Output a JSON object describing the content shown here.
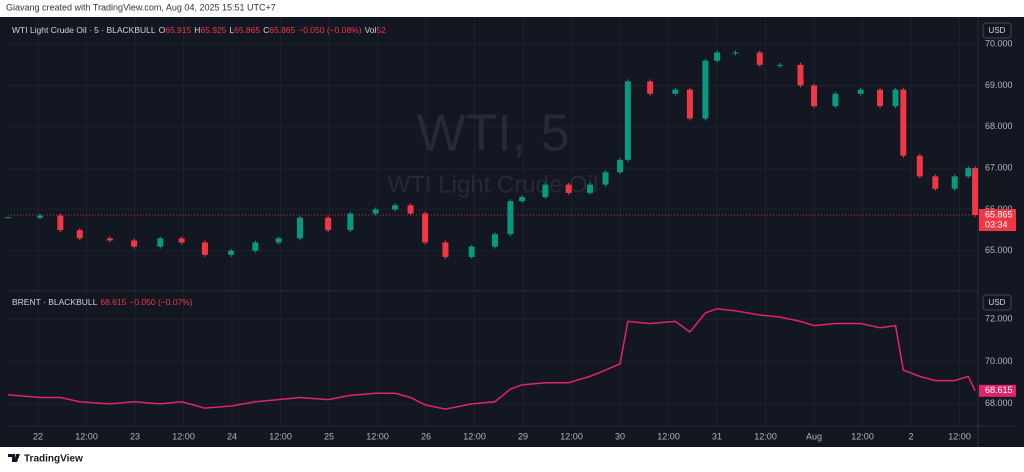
{
  "header": {
    "credit": "Giavang created with TradingView.com, Aug 04, 2025 15:51 UTC+7"
  },
  "footer": {
    "brand": "TradingView"
  },
  "chart_data": [
    {
      "type": "candlestick",
      "watermark": "WTI, 5",
      "watermark_sub": "WTI Light Crude Oil",
      "currency": "USD",
      "legend": {
        "name": "WTI Light Crude Oil · 5 · BLACKBULL",
        "fields": [
          {
            "key": "O",
            "value": "65.915"
          },
          {
            "key": "H",
            "value": "65.925"
          },
          {
            "key": "L",
            "value": "65.865"
          },
          {
            "key": "C",
            "value": "65.865"
          }
        ],
        "change": "−0.050 (−0.08%)",
        "vol_key": "Vol",
        "vol": "52"
      },
      "x": [
        -0.31,
        0.02,
        0.23,
        0.43,
        0.74,
        0.99,
        1.26,
        1.48,
        1.72,
        1.99,
        2.24,
        2.48,
        2.7,
        2.99,
        3.22,
        3.48,
        3.68,
        3.84,
        3.99,
        4.2,
        4.47,
        4.71,
        4.87,
        4.99,
        5.23,
        5.47,
        5.69,
        5.85,
        6.0,
        6.08,
        6.31,
        6.57,
        6.72,
        6.88,
        7.0,
        7.19,
        7.44,
        7.65,
        7.86,
        8.0,
        8.22,
        8.48,
        8.68,
        8.84,
        8.92,
        9.09,
        9.25,
        9.45,
        9.59,
        9.66
      ],
      "series": [
        {
          "name": "WTI",
          "up_color": "#089981",
          "down_color": "#f23645",
          "values": [
            65.8,
            65.85,
            65.5,
            65.3,
            65.25,
            65.1,
            65.3,
            65.2,
            64.9,
            65.0,
            65.2,
            65.3,
            65.8,
            65.5,
            65.9,
            66.0,
            66.1,
            65.9,
            65.2,
            64.85,
            65.1,
            65.4,
            66.2,
            66.3,
            66.6,
            66.4,
            66.6,
            66.9,
            67.2,
            69.1,
            68.8,
            68.9,
            68.2,
            69.6,
            69.8,
            69.8,
            69.5,
            69.5,
            69.0,
            68.5,
            68.8,
            68.9,
            68.5,
            68.9,
            67.3,
            66.8,
            66.5,
            66.8,
            67.0,
            65.865
          ]
        }
      ],
      "last_price": 65.865,
      "countdown": "03:34",
      "xlim": [
        -0.31,
        9.69
      ],
      "ylim": [
        64.05,
        70.585
      ],
      "yticks": [
        {
          "value": 65,
          "label": "65.000"
        },
        {
          "value": 66,
          "label": "66.000"
        },
        {
          "value": 67,
          "label": "67.000"
        },
        {
          "value": 68,
          "label": "68.000"
        },
        {
          "value": 69,
          "label": "69.000"
        },
        {
          "value": 70,
          "label": "70.000"
        }
      ],
      "grid": true
    },
    {
      "type": "line",
      "currency": "USD",
      "legend": {
        "name": "BRENT · BLACKBULL",
        "price": "68.615",
        "change": "−0.050 (−0.07%)"
      },
      "x": [
        -0.31,
        0.02,
        0.23,
        0.43,
        0.74,
        0.99,
        1.26,
        1.48,
        1.72,
        1.99,
        2.24,
        2.48,
        2.7,
        2.99,
        3.22,
        3.48,
        3.68,
        3.84,
        3.99,
        4.2,
        4.47,
        4.71,
        4.87,
        4.99,
        5.23,
        5.47,
        5.69,
        5.85,
        6.0,
        6.08,
        6.31,
        6.57,
        6.72,
        6.88,
        7.0,
        7.19,
        7.44,
        7.65,
        7.86,
        8.0,
        8.22,
        8.48,
        8.68,
        8.84,
        8.92,
        9.09,
        9.25,
        9.45,
        9.59,
        9.66
      ],
      "series": [
        {
          "name": "BRENT",
          "color": "#e0246b",
          "values": [
            68.43,
            68.3,
            68.3,
            68.1,
            68.0,
            68.1,
            68.0,
            68.1,
            67.8,
            67.9,
            68.1,
            68.2,
            68.3,
            68.2,
            68.4,
            68.5,
            68.5,
            68.3,
            67.95,
            67.75,
            68.0,
            68.1,
            68.7,
            68.9,
            69.0,
            69.0,
            69.3,
            69.6,
            69.9,
            71.9,
            71.8,
            71.9,
            71.4,
            72.3,
            72.5,
            72.4,
            72.2,
            72.1,
            71.9,
            71.7,
            71.8,
            71.8,
            71.6,
            71.7,
            69.6,
            69.3,
            69.1,
            69.1,
            69.3,
            68.615
          ]
        }
      ],
      "last_price": 68.615,
      "xlim": [
        -0.31,
        9.69
      ],
      "ylim": [
        67.0,
        73.29
      ],
      "yticks": [
        {
          "value": 68,
          "label": "68.000"
        },
        {
          "value": 70,
          "label": "70.000"
        },
        {
          "value": 72,
          "label": "72.000"
        }
      ],
      "xticks": [
        {
          "value": 0,
          "label": "22"
        },
        {
          "value": 0.5,
          "label": "12:00"
        },
        {
          "value": 1,
          "label": "23"
        },
        {
          "value": 1.5,
          "label": "12:00"
        },
        {
          "value": 2,
          "label": "24"
        },
        {
          "value": 2.5,
          "label": "12:00"
        },
        {
          "value": 3,
          "label": "25"
        },
        {
          "value": 3.5,
          "label": "12:00"
        },
        {
          "value": 4,
          "label": "26"
        },
        {
          "value": 4.5,
          "label": "12:00"
        },
        {
          "value": 5,
          "label": "29"
        },
        {
          "value": 5.5,
          "label": "12:00"
        },
        {
          "value": 6,
          "label": "30"
        },
        {
          "value": 6.5,
          "label": "12:00"
        },
        {
          "value": 7,
          "label": "31"
        },
        {
          "value": 7.5,
          "label": "12:00"
        },
        {
          "value": 8,
          "label": "Aug"
        },
        {
          "value": 8.5,
          "label": "12:00"
        },
        {
          "value": 9,
          "label": "2"
        },
        {
          "value": 9.5,
          "label": "12:00"
        }
      ],
      "grid": true
    }
  ]
}
